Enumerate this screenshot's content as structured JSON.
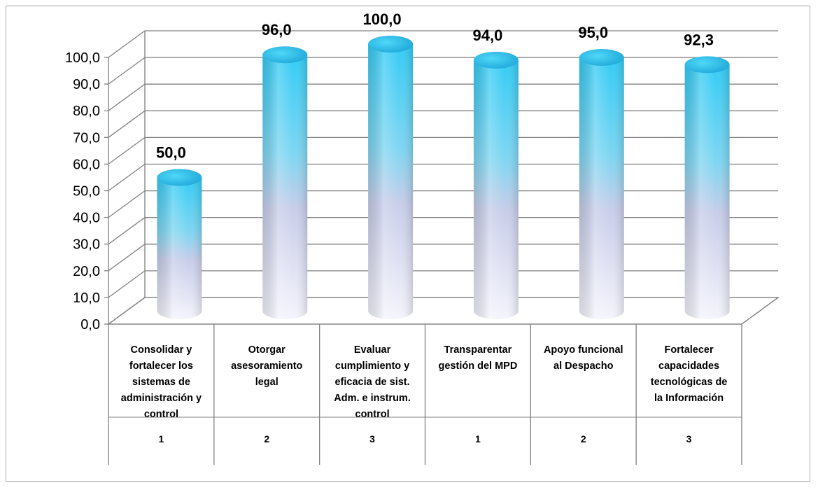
{
  "chart_data": {
    "type": "bar",
    "style": "3d-cylinder",
    "categories": [
      [
        "Consolidar y",
        "fortalecer los",
        "sistemas de",
        "administración y",
        "control"
      ],
      [
        "Otorgar",
        "asesoramiento",
        "legal"
      ],
      [
        "Evaluar",
        "cumplimiento y",
        "eficacia de sist.",
        "Adm. e instrum.",
        "control"
      ],
      [
        "Transparentar",
        "gestión del MPD"
      ],
      [
        "Apoyo funcional",
        "al Despacho"
      ],
      [
        "Fortalecer",
        "capacidades",
        "tecnológicas de",
        "la Información"
      ]
    ],
    "groups": [
      "1",
      "2",
      "3",
      "1",
      "2",
      "3"
    ],
    "values": [
      50.0,
      96.0,
      100.0,
      94.0,
      95.0,
      92.3
    ],
    "data_labels": [
      "50,0",
      "96,0",
      "100,0",
      "94,0",
      "95,0",
      "92,3"
    ],
    "ylim": [
      0,
      100
    ],
    "yticks": [
      "0,0",
      "10,0",
      "20,0",
      "30,0",
      "40,0",
      "50,0",
      "60,0",
      "70,0",
      "80,0",
      "90,0",
      "100,0"
    ],
    "grid": true,
    "colors": {
      "bar_top": "#33ccf5",
      "bar_bottom": "#f2f2fb",
      "cap": "#2bb4e6",
      "grid": "#808080"
    }
  }
}
